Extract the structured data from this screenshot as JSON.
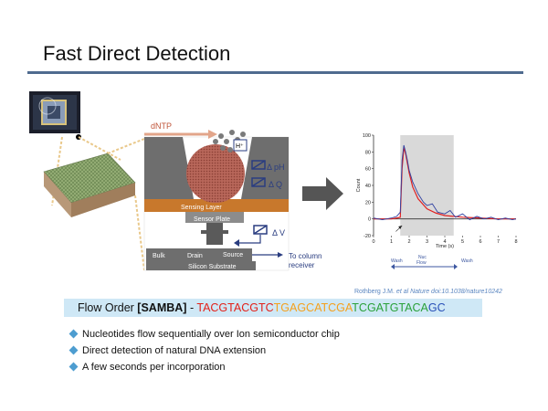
{
  "slide": {
    "title": "Fast Direct Detection"
  },
  "diagram": {
    "dntp_label": "dNTP",
    "h_plus_label": "H⁺",
    "delta_ph": "Δ pH",
    "delta_q": "Δ Q",
    "delta_v": "Δ V",
    "sensing_layer": "Sensing Layer",
    "sensor_plate": "Sensor Plate",
    "bulk": "Bulk",
    "drain": "Drain",
    "source": "Source",
    "silicon_substrate": "Silicon Substrate",
    "to_column": "To column",
    "receiver": "receiver"
  },
  "chart_data": {
    "type": "line",
    "xlabel": "Time (s)",
    "ylabel": "Count",
    "xlim": [
      0,
      8
    ],
    "ylim": [
      -20,
      100
    ],
    "xticks": [
      "0",
      "1",
      "2",
      "3",
      "4",
      "5",
      "6",
      "7",
      "8"
    ],
    "yticks": [
      "-20",
      "0",
      "20",
      "40",
      "60",
      "80",
      "100"
    ],
    "shaded_region": [
      1.5,
      4.5
    ],
    "phase_labels": [
      "Wash",
      "Nuc\nFlow",
      "Wash"
    ],
    "series": [
      {
        "color": "#e02020",
        "x": [
          0,
          1,
          1.3,
          1.5,
          1.6,
          1.7,
          1.8,
          2.0,
          2.2,
          2.5,
          3.0,
          3.5,
          4,
          5,
          6,
          7,
          8
        ],
        "y": [
          0,
          0,
          1,
          2,
          60,
          85,
          78,
          55,
          38,
          24,
          12,
          7,
          4,
          2,
          1,
          0,
          0
        ]
      },
      {
        "color": "#3040a0",
        "x": [
          0,
          0.5,
          1,
          1.3,
          1.5,
          1.6,
          1.7,
          1.8,
          1.9,
          2.0,
          2.2,
          2.5,
          2.8,
          3.0,
          3.3,
          3.6,
          4.0,
          4.3,
          4.6,
          5.0,
          5.4,
          5.8,
          6.2,
          6.6,
          7.0,
          7.4,
          7.8,
          8.0
        ],
        "y": [
          1,
          -1,
          1,
          3,
          8,
          70,
          88,
          80,
          70,
          58,
          44,
          30,
          20,
          16,
          18,
          8,
          6,
          10,
          2,
          6,
          -1,
          3,
          0,
          2,
          -1,
          1,
          -1,
          0
        ]
      }
    ]
  },
  "citation": {
    "authors": "Rothberg J.M.",
    "rest": "et al Nature doi:10.1038/nature10242"
  },
  "flow_order": {
    "prefix": "Flow Order ",
    "name": "[SAMBA]",
    "dash": " - ",
    "segments": [
      {
        "text": "TACGTACGTC",
        "color": "#e32119"
      },
      {
        "text": "TGAGCATCGA",
        "color": "#f5a01c"
      },
      {
        "text": "TCGATGTACA",
        "color": "#2aa13a"
      },
      {
        "text": "GC",
        "color": "#2850b8"
      }
    ]
  },
  "bullets": [
    "Nucleotides flow sequentially over Ion semiconductor chip",
    "Direct detection of natural DNA extension",
    "A few seconds per incorporation"
  ]
}
